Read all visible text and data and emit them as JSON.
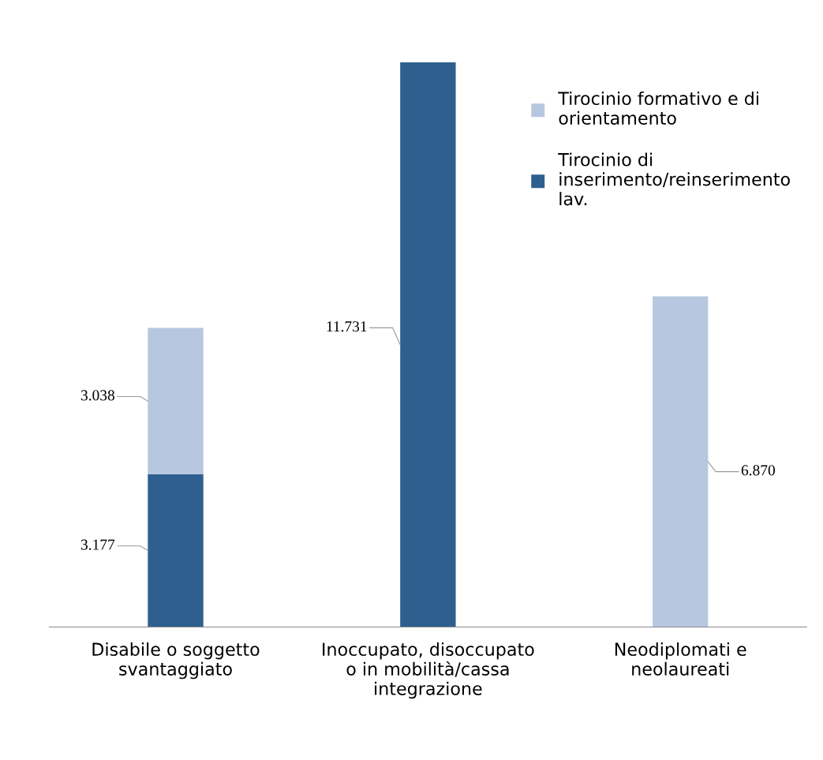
{
  "chart_data": {
    "type": "bar",
    "stacked": true,
    "categories": [
      "Disabile o soggetto svantaggiato",
      "Inoccupato, disoccupato o in mobilità/cassa integrazione",
      "Neodiplomati e neolaureati"
    ],
    "series": [
      {
        "name": "Tirocinio di inserimento/reinserimento lav.",
        "color": "#2f5f8f",
        "values": [
          3177,
          11731,
          null
        ],
        "value_labels": [
          "3.177",
          "11.731",
          null
        ]
      },
      {
        "name": "Tirocinio formativo e di orientamento",
        "color": "#b8c7e0",
        "values": [
          3038,
          null,
          6870
        ],
        "value_labels": [
          "3.038",
          null,
          "6.870"
        ]
      }
    ],
    "legend": "top right",
    "grid": false
  }
}
